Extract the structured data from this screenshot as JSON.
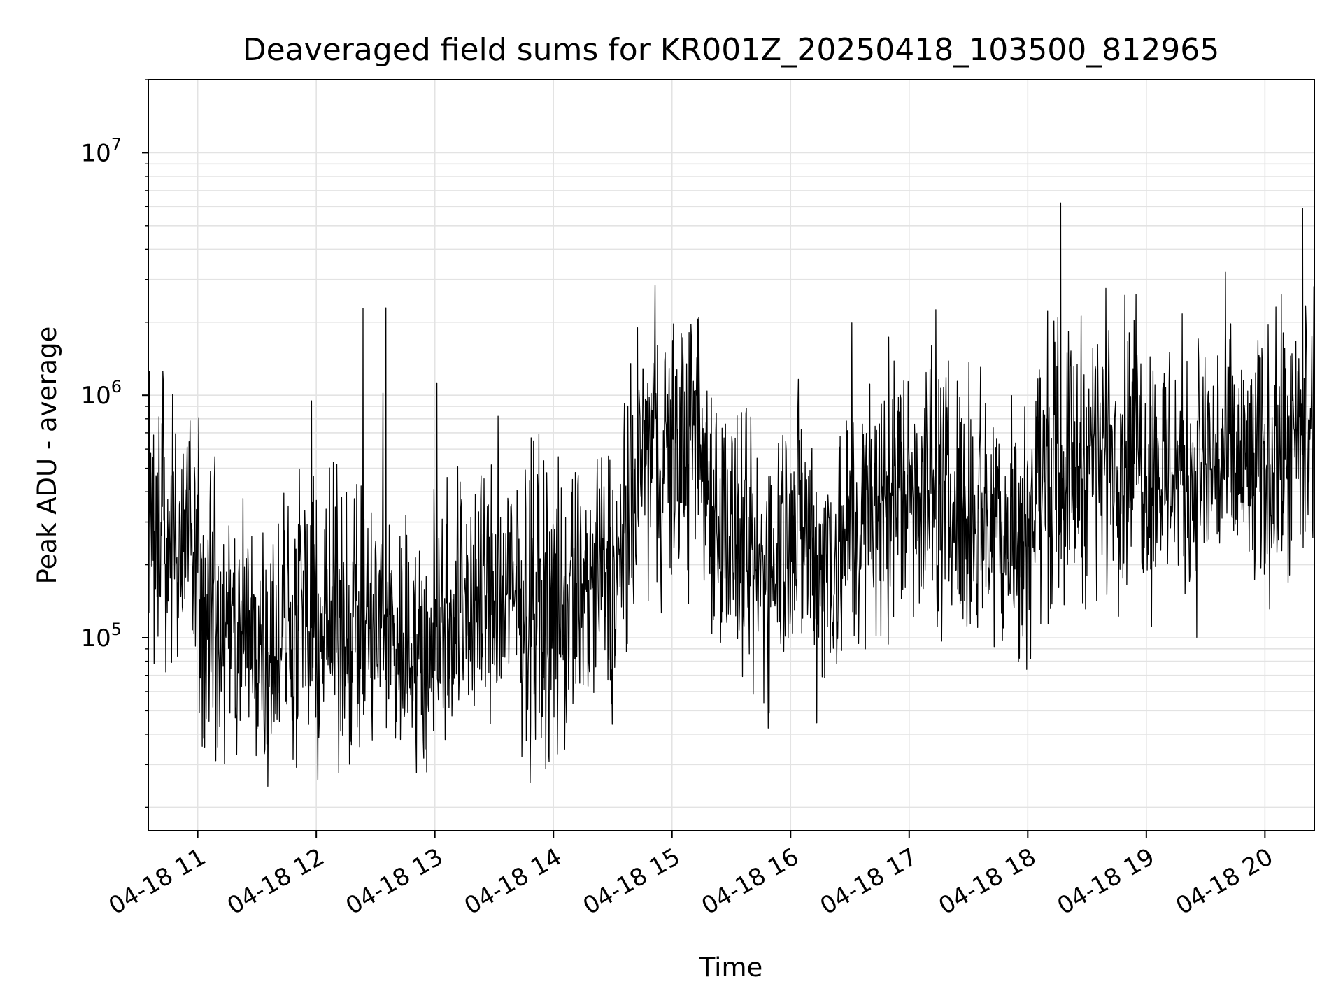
{
  "chart_data": {
    "type": "line",
    "title": "Deaveraged field sums for KR001Z_20250418_103500_812965",
    "xlabel": "Time",
    "ylabel": "Peak ADU - average",
    "yscale": "log",
    "ylim": [
      16000,
      20000000
    ],
    "xlim": [
      "2025-04-18 10:35",
      "2025-04-18 20:25"
    ],
    "grid": true,
    "line_color": "#000000",
    "grid_color": "#e3e3e3",
    "x_ticks": [
      "04-18 11",
      "04-18 12",
      "04-18 13",
      "04-18 14",
      "04-18 15",
      "04-18 16",
      "04-18 17",
      "04-18 18",
      "04-18 19",
      "04-18 20"
    ],
    "y_ticks": [
      {
        "base": "10",
        "exp": "5",
        "value": 100000
      },
      {
        "base": "10",
        "exp": "6",
        "value": 1000000
      },
      {
        "base": "10",
        "exp": "7",
        "value": 10000000
      }
    ],
    "series": [
      {
        "x": [
          "2025-04-18 10:35",
          "2025-04-18 10:45",
          "2025-04-18 10:55",
          "2025-04-18 11:05",
          "2025-04-18 11:15",
          "2025-04-18 11:25",
          "2025-04-18 11:35",
          "2025-04-18 11:45",
          "2025-04-18 11:55",
          "2025-04-18 12:05",
          "2025-04-18 12:15",
          "2025-04-18 12:25",
          "2025-04-18 12:35",
          "2025-04-18 12:45",
          "2025-04-18 12:55",
          "2025-04-18 13:05",
          "2025-04-18 13:15",
          "2025-04-18 13:25",
          "2025-04-18 13:35",
          "2025-04-18 13:45",
          "2025-04-18 13:55",
          "2025-04-18 14:05",
          "2025-04-18 14:15",
          "2025-04-18 14:25",
          "2025-04-18 14:35",
          "2025-04-18 14:45",
          "2025-04-18 14:55",
          "2025-04-18 15:05",
          "2025-04-18 15:15",
          "2025-04-18 15:25",
          "2025-04-18 15:35",
          "2025-04-18 15:45",
          "2025-04-18 15:55",
          "2025-04-18 16:05",
          "2025-04-18 16:15",
          "2025-04-18 16:25",
          "2025-04-18 16:35",
          "2025-04-18 16:45",
          "2025-04-18 16:55",
          "2025-04-18 17:05",
          "2025-04-18 17:15",
          "2025-04-18 17:25",
          "2025-04-18 17:35",
          "2025-04-18 17:45",
          "2025-04-18 17:55",
          "2025-04-18 18:05",
          "2025-04-18 18:15",
          "2025-04-18 18:25",
          "2025-04-18 18:35",
          "2025-04-18 18:45",
          "2025-04-18 18:55",
          "2025-04-18 19:05",
          "2025-04-18 19:15",
          "2025-04-18 19:25",
          "2025-04-18 19:35",
          "2025-04-18 19:45",
          "2025-04-18 19:55",
          "2025-04-18 20:05",
          "2025-04-18 20:15",
          "2025-04-18 20:25"
        ],
        "y": [
          250000,
          280000,
          300000,
          110000,
          95000,
          100000,
          100000,
          105000,
          110000,
          115000,
          120000,
          105000,
          110000,
          95000,
          80000,
          125000,
          150000,
          145000,
          150000,
          135000,
          125000,
          120000,
          165000,
          170000,
          190000,
          600000,
          550000,
          650000,
          550000,
          300000,
          220000,
          180000,
          280000,
          300000,
          200000,
          230000,
          300000,
          350000,
          420000,
          450000,
          380000,
          330000,
          350000,
          320000,
          250000,
          420000,
          500000,
          520000,
          620000,
          620000,
          600000,
          480000,
          520000,
          470000,
          550000,
          520000,
          480000,
          540000,
          560000,
          600000
        ]
      }
    ]
  }
}
